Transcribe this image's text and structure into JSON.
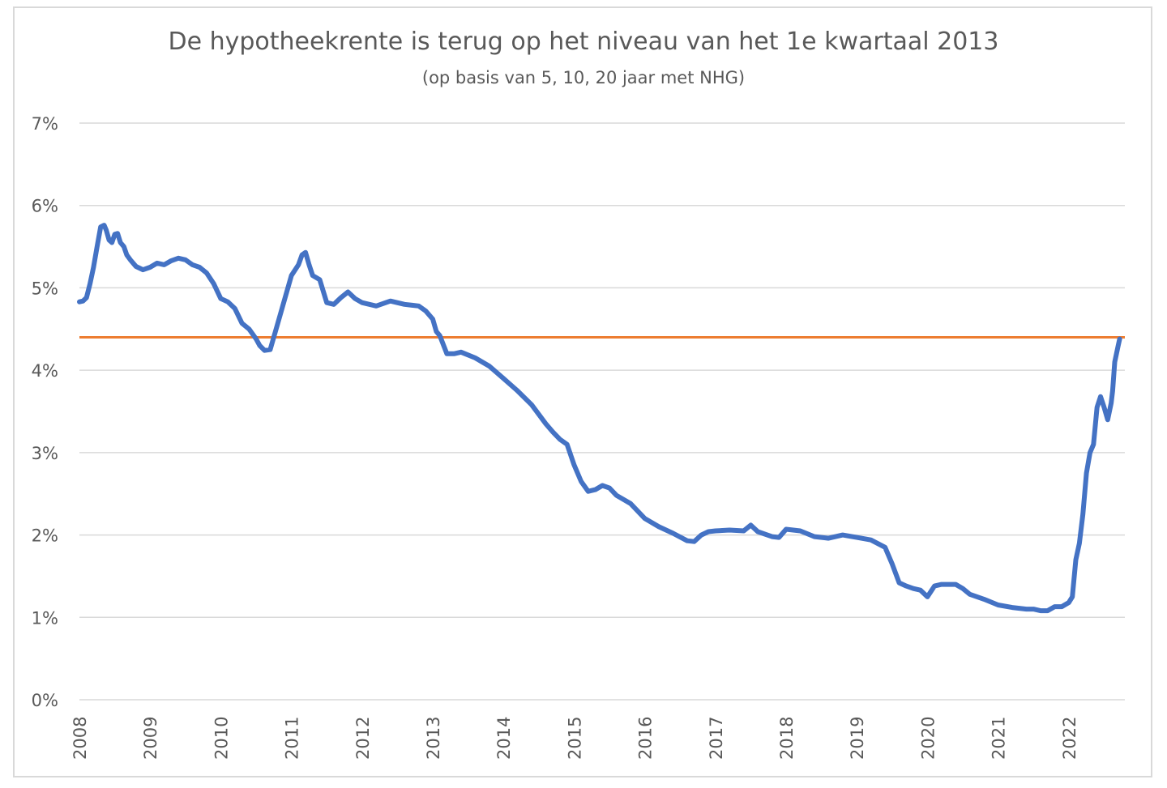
{
  "chart_data": {
    "type": "line",
    "title": "De hypotheekrente is terug op het niveau van het 1e kwartaal 2013",
    "subtitle": "(op basis van 5, 10, 20 jaar met NHG)",
    "xlabel": "",
    "ylabel": "",
    "ylim": [
      0,
      7
    ],
    "xlim": [
      2008,
      2022.9
    ],
    "grid": true,
    "legend": "none",
    "y_ticks": [
      "0%",
      "1%",
      "2%",
      "3%",
      "4%",
      "5%",
      "6%",
      "7%"
    ],
    "x_ticks": [
      "2008",
      "2009",
      "2010",
      "2011",
      "2012",
      "2013",
      "2014",
      "2015",
      "2016",
      "2017",
      "2018",
      "2019",
      "2020",
      "2021",
      "2022"
    ],
    "colors": {
      "series": "#4472c4",
      "reference": "#ed7d31",
      "grid": "#d9d9d9",
      "text": "#595959"
    },
    "reference_line": {
      "value": 4.4
    },
    "series": [
      {
        "x": [
          2008.0,
          2008.05,
          2008.1,
          2008.15,
          2008.2,
          2008.25,
          2008.3,
          2008.35,
          2008.38,
          2008.42,
          2008.46,
          2008.5,
          2008.54,
          2008.58,
          2008.63,
          2008.67,
          2008.72,
          2008.8,
          2008.9,
          2009.0,
          2009.1,
          2009.2,
          2009.3,
          2009.4,
          2009.5,
          2009.6,
          2009.7,
          2009.8,
          2009.9,
          2010.0,
          2010.1,
          2010.2,
          2010.3,
          2010.4,
          2010.5,
          2010.55,
          2010.62,
          2010.7,
          2010.8,
          2010.9,
          2011.0,
          2011.1,
          2011.15,
          2011.2,
          2011.25,
          2011.3,
          2011.4,
          2011.5,
          2011.6,
          2011.7,
          2011.8,
          2011.9,
          2012.0,
          2012.2,
          2012.4,
          2012.6,
          2012.8,
          2012.9,
          2013.0,
          2013.05,
          2013.1,
          2013.2,
          2013.3,
          2013.4,
          2013.6,
          2013.8,
          2014.0,
          2014.2,
          2014.4,
          2014.6,
          2014.7,
          2014.8,
          2014.9,
          2015.0,
          2015.1,
          2015.2,
          2015.3,
          2015.4,
          2015.5,
          2015.6,
          2015.8,
          2016.0,
          2016.2,
          2016.4,
          2016.6,
          2016.7,
          2016.8,
          2016.9,
          2017.0,
          2017.2,
          2017.4,
          2017.5,
          2017.6,
          2017.8,
          2017.9,
          2018.0,
          2018.2,
          2018.4,
          2018.6,
          2018.8,
          2019.0,
          2019.2,
          2019.4,
          2019.5,
          2019.6,
          2019.7,
          2019.8,
          2019.9,
          2020.0,
          2020.1,
          2020.2,
          2020.4,
          2020.5,
          2020.6,
          2020.8,
          2021.0,
          2021.2,
          2021.4,
          2021.5,
          2021.6,
          2021.7,
          2021.8,
          2021.9,
          2022.0,
          2022.05,
          2022.1,
          2022.15,
          2022.2,
          2022.25,
          2022.3,
          2022.35,
          2022.4,
          2022.45,
          2022.5,
          2022.55,
          2022.6,
          2022.62,
          2022.65,
          2022.7,
          2022.72
        ],
        "values": [
          4.83,
          4.84,
          4.88,
          5.05,
          5.25,
          5.5,
          5.74,
          5.76,
          5.7,
          5.58,
          5.55,
          5.65,
          5.66,
          5.55,
          5.5,
          5.4,
          5.34,
          5.26,
          5.22,
          5.25,
          5.3,
          5.28,
          5.33,
          5.36,
          5.34,
          5.28,
          5.25,
          5.18,
          5.05,
          4.87,
          4.83,
          4.75,
          4.57,
          4.5,
          4.38,
          4.3,
          4.24,
          4.25,
          4.55,
          4.85,
          5.15,
          5.28,
          5.4,
          5.43,
          5.28,
          5.15,
          5.1,
          4.82,
          4.8,
          4.88,
          4.95,
          4.87,
          4.82,
          4.78,
          4.84,
          4.8,
          4.78,
          4.72,
          4.62,
          4.47,
          4.42,
          4.2,
          4.2,
          4.22,
          4.15,
          4.05,
          3.9,
          3.75,
          3.58,
          3.35,
          3.25,
          3.16,
          3.1,
          2.85,
          2.65,
          2.53,
          2.55,
          2.6,
          2.57,
          2.48,
          2.38,
          2.2,
          2.1,
          2.02,
          1.93,
          1.92,
          2.0,
          2.04,
          2.05,
          2.06,
          2.05,
          2.12,
          2.04,
          1.98,
          1.97,
          2.07,
          2.05,
          1.98,
          1.96,
          2.0,
          1.97,
          1.94,
          1.85,
          1.65,
          1.42,
          1.38,
          1.35,
          1.33,
          1.25,
          1.38,
          1.4,
          1.4,
          1.35,
          1.28,
          1.22,
          1.15,
          1.12,
          1.1,
          1.1,
          1.08,
          1.08,
          1.13,
          1.13,
          1.18,
          1.25,
          1.7,
          1.9,
          2.25,
          2.75,
          3.0,
          3.1,
          3.55,
          3.68,
          3.55,
          3.4,
          3.6,
          3.75,
          4.1,
          4.3,
          4.38
        ]
      }
    ]
  }
}
